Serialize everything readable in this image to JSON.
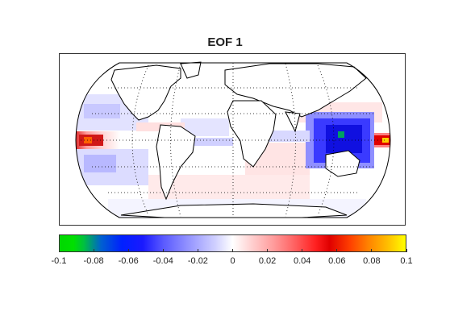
{
  "title": "EOF 1",
  "colorbar": {
    "ticks": [
      "-0.1",
      "-0.08",
      "-0.06",
      "-0.04",
      "-0.02",
      "0",
      "0.02",
      "0.04",
      "0.06",
      "0.08",
      "0.1"
    ],
    "min": -0.1,
    "max": 0.1,
    "colors": {
      "negative_extreme": "#00d800",
      "negative_strong": "#0020ff",
      "negative_weak": "#c8c8ff",
      "zero": "#ffffff",
      "positive_weak": "#ffd0d0",
      "positive_strong": "#e00000",
      "positive_extreme": "#ffff00"
    }
  },
  "map": {
    "projection": "robinson",
    "graticule": "dotted",
    "features": [
      "equatorial-pacific-warm-anomaly",
      "western-pacific-cool-anomaly"
    ]
  }
}
